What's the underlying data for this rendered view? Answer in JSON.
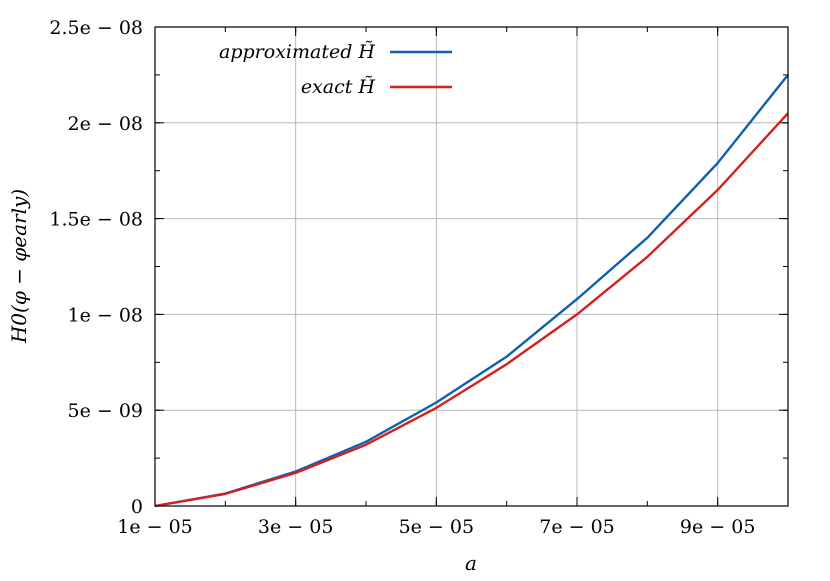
{
  "chart_data": {
    "type": "line",
    "xlabel": "a",
    "ylabel": "H0(φ − φearly)",
    "xlim": [
      1e-05,
      0.0001
    ],
    "ylim": [
      0,
      2.5e-08
    ],
    "x_ticks": [
      1e-05,
      3e-05,
      5e-05,
      7e-05,
      9e-05
    ],
    "x_tick_labels": [
      "1e − 05",
      "3e − 05",
      "5e − 05",
      "7e − 05",
      "9e − 05"
    ],
    "y_ticks": [
      0,
      5e-09,
      1e-08,
      1.5e-08,
      2e-08,
      2.5e-08
    ],
    "y_tick_labels": [
      "0",
      "5e − 09",
      "1e − 08",
      "1.5e − 08",
      "2e − 08",
      "2.5e − 08"
    ],
    "grid": true,
    "legend_position": "top-left",
    "x": [
      1e-05,
      2e-05,
      3e-05,
      4e-05,
      5e-05,
      6e-05,
      7e-05,
      8e-05,
      9e-05,
      0.0001
    ],
    "series": [
      {
        "name": "approximated H̃",
        "color": "#1060b0",
        "values": [
          0,
          6.5e-10,
          1.8e-09,
          3.35e-09,
          5.4e-09,
          7.8e-09,
          1.08e-08,
          1.4e-08,
          1.79e-08,
          2.25e-08
        ]
      },
      {
        "name": "exact H̃",
        "color": "#d62020",
        "values": [
          0,
          6.3e-10,
          1.73e-09,
          3.2e-09,
          5.12e-09,
          7.4e-09,
          1e-08,
          1.3e-08,
          1.65e-08,
          2.05e-08
        ]
      }
    ]
  }
}
